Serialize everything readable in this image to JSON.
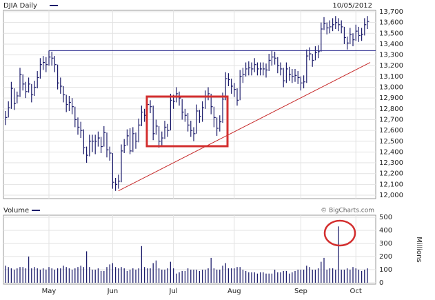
{
  "chart_data": [
    {
      "type": "ohlc",
      "title": "DJIA Daily",
      "date": "10/05/2012",
      "color": "#1c1c6b",
      "high": [
        12780,
        12870,
        13050,
        12990,
        12960,
        13180,
        13120,
        13050,
        13090,
        13030,
        13060,
        13150,
        13270,
        13290,
        13280,
        13340,
        13330,
        13290,
        13210,
        13090,
        13010,
        12930,
        12920,
        12900,
        12820,
        12720,
        12680,
        12610,
        12450,
        12560,
        12560,
        12560,
        12590,
        12540,
        12640,
        12580,
        12450,
        12390,
        12160,
        12190,
        12470,
        12520,
        12610,
        12620,
        12630,
        12580,
        12710,
        12830,
        12800,
        12900,
        12880,
        12830,
        12700,
        12640,
        12590,
        12690,
        12660,
        12940,
        12930,
        13000,
        12960,
        12890,
        12800,
        12760,
        12690,
        12630,
        12840,
        12790,
        12870,
        12970,
        13000,
        12940,
        12820,
        12720,
        12740,
        12950,
        13140,
        13130,
        13080,
        13040,
        12990,
        13160,
        13180,
        13230,
        13240,
        13230,
        13270,
        13230,
        13230,
        13230,
        13220,
        13310,
        13340,
        13330,
        13280,
        13230,
        13180,
        13230,
        13190,
        13170,
        13170,
        13150,
        13100,
        13110,
        13350,
        13370,
        13310,
        13380,
        13390,
        13600,
        13650,
        13600,
        13620,
        13640,
        13660,
        13640,
        13620,
        13560,
        13470,
        13550,
        13500,
        13580,
        13560,
        13550,
        13640,
        13660
      ],
      "low": [
        12650,
        12720,
        12800,
        12790,
        12850,
        12910,
        12970,
        12900,
        12950,
        12860,
        12920,
        12990,
        13080,
        13160,
        13140,
        13200,
        13200,
        13140,
        12980,
        12940,
        12860,
        12770,
        12780,
        12750,
        12630,
        12560,
        12530,
        12380,
        12300,
        12360,
        12400,
        12380,
        12450,
        12390,
        12450,
        12350,
        12320,
        12060,
        12040,
        12060,
        12120,
        12390,
        12460,
        12380,
        12400,
        12430,
        12490,
        12640,
        12680,
        12740,
        12760,
        12510,
        12560,
        12440,
        12460,
        12520,
        12540,
        12600,
        12800,
        12860,
        12830,
        12700,
        12680,
        12590,
        12540,
        12500,
        12570,
        12670,
        12680,
        12800,
        12880,
        12750,
        12630,
        12550,
        12590,
        12670,
        12880,
        13010,
        12940,
        12910,
        12830,
        12880,
        13040,
        13100,
        13110,
        13110,
        13140,
        13110,
        13110,
        13110,
        13090,
        13150,
        13200,
        13210,
        13130,
        13110,
        13000,
        13040,
        13060,
        13040,
        13050,
        13030,
        12970,
        12990,
        13040,
        13250,
        13190,
        13250,
        13270,
        13330,
        13530,
        13490,
        13500,
        13520,
        13540,
        13520,
        13500,
        13400,
        13350,
        13400,
        13380,
        13430,
        13420,
        13430,
        13480,
        13540
      ],
      "close": [
        12720,
        12810,
        12990,
        12850,
        12920,
        13120,
        13030,
        12960,
        13030,
        12930,
        13000,
        13090,
        13210,
        13230,
        13210,
        13280,
        13270,
        13210,
        13040,
        13010,
        12930,
        12840,
        12860,
        12820,
        12700,
        12630,
        12600,
        12440,
        12370,
        12500,
        12500,
        12500,
        12530,
        12450,
        12580,
        12420,
        12390,
        12120,
        12100,
        12130,
        12410,
        12460,
        12550,
        12410,
        12570,
        12500,
        12650,
        12770,
        12740,
        12840,
        12820,
        12570,
        12640,
        12500,
        12530,
        12630,
        12600,
        12880,
        12870,
        12940,
        12900,
        12770,
        12740,
        12650,
        12600,
        12570,
        12780,
        12730,
        12810,
        12910,
        12940,
        12820,
        12720,
        12620,
        12680,
        12890,
        13080,
        13070,
        13010,
        12980,
        12880,
        13100,
        13120,
        13170,
        13180,
        13170,
        13210,
        13170,
        13170,
        13170,
        13160,
        13250,
        13280,
        13270,
        13200,
        13170,
        13060,
        13170,
        13120,
        13100,
        13110,
        13090,
        13040,
        13050,
        13290,
        13310,
        13250,
        13320,
        13330,
        13540,
        13590,
        13550,
        13560,
        13580,
        13600,
        13580,
        13560,
        13460,
        13410,
        13490,
        13440,
        13520,
        13480,
        13490,
        13580,
        13610
      ],
      "ylim": [
        12000,
        13700
      ],
      "yticks": [
        {
          "value": 12000,
          "label": "12,000"
        },
        {
          "value": 12100,
          "label": "12,100"
        },
        {
          "value": 12200,
          "label": "12,200"
        },
        {
          "value": 12300,
          "label": "12,300"
        },
        {
          "value": 12400,
          "label": "12,400"
        },
        {
          "value": 12500,
          "label": "12,500"
        },
        {
          "value": 12600,
          "label": "12,600"
        },
        {
          "value": 12700,
          "label": "12,700"
        },
        {
          "value": 12800,
          "label": "12,800"
        },
        {
          "value": 12900,
          "label": "12,900"
        },
        {
          "value": 13000,
          "label": "13,000"
        },
        {
          "value": 13100,
          "label": "13,100"
        },
        {
          "value": 13200,
          "label": "13,200"
        },
        {
          "value": 13300,
          "label": "13,300"
        },
        {
          "value": 13400,
          "label": "13,400"
        },
        {
          "value": 13500,
          "label": "13,500"
        },
        {
          "value": 13600,
          "label": "13,600"
        },
        {
          "value": 13700,
          "label": "13,700"
        }
      ],
      "hline": 13340,
      "hline_color": "#2b2b8f",
      "trendline": {
        "start": 12040,
        "end": 13230,
        "color": "#c62828"
      },
      "grid": true
    },
    {
      "type": "bar",
      "title": "Volume",
      "source": "© BigCharts.com",
      "ylabel": "Millions",
      "color": "#1c1c6b",
      "categories": [
        null,
        null,
        null,
        null,
        null,
        null,
        null,
        null,
        null,
        null,
        null,
        null,
        null,
        null,
        null,
        "May",
        null,
        null,
        null,
        null,
        null,
        null,
        null,
        null,
        null,
        null,
        null,
        null,
        null,
        null,
        null,
        null,
        null,
        null,
        null,
        null,
        null,
        "Jun",
        null,
        null,
        null,
        null,
        null,
        null,
        null,
        null,
        null,
        null,
        null,
        null,
        null,
        null,
        null,
        null,
        null,
        null,
        null,
        null,
        "Jul",
        null,
        null,
        null,
        null,
        null,
        null,
        null,
        null,
        null,
        null,
        null,
        null,
        null,
        null,
        null,
        null,
        null,
        null,
        null,
        null,
        "Aug",
        null,
        null,
        null,
        null,
        null,
        null,
        null,
        null,
        null,
        null,
        null,
        null,
        null,
        null,
        null,
        null,
        null,
        null,
        null,
        null,
        null,
        null,
        "Sep",
        null,
        null,
        null,
        null,
        null,
        null,
        null,
        null,
        null,
        null,
        null,
        null,
        null,
        null,
        null,
        null,
        null,
        null,
        "Oct",
        null,
        null,
        null,
        null
      ],
      "values": [
        130,
        120,
        110,
        100,
        110,
        120,
        120,
        110,
        200,
        110,
        120,
        110,
        100,
        110,
        100,
        120,
        110,
        100,
        110,
        110,
        130,
        120,
        110,
        100,
        110,
        120,
        130,
        120,
        240,
        120,
        100,
        100,
        110,
        90,
        90,
        120,
        140,
        150,
        120,
        110,
        120,
        110,
        90,
        100,
        110,
        100,
        110,
        280,
        120,
        110,
        110,
        150,
        170,
        110,
        100,
        100,
        110,
        160,
        110,
        70,
        80,
        90,
        90,
        110,
        100,
        100,
        100,
        90,
        100,
        100,
        110,
        190,
        110,
        100,
        100,
        130,
        150,
        110,
        110,
        110,
        120,
        120,
        100,
        90,
        80,
        80,
        80,
        70,
        80,
        80,
        70,
        70,
        70,
        100,
        80,
        80,
        90,
        90,
        70,
        80,
        90,
        100,
        100,
        100,
        130,
        120,
        100,
        100,
        110,
        160,
        190,
        100,
        110,
        110,
        100,
        430,
        100,
        100,
        110,
        100,
        120,
        110,
        100,
        90,
        100,
        110
      ],
      "ylim": [
        0,
        500
      ],
      "yticks": [
        0,
        100,
        200,
        300,
        400,
        500
      ],
      "grid": true
    }
  ]
}
